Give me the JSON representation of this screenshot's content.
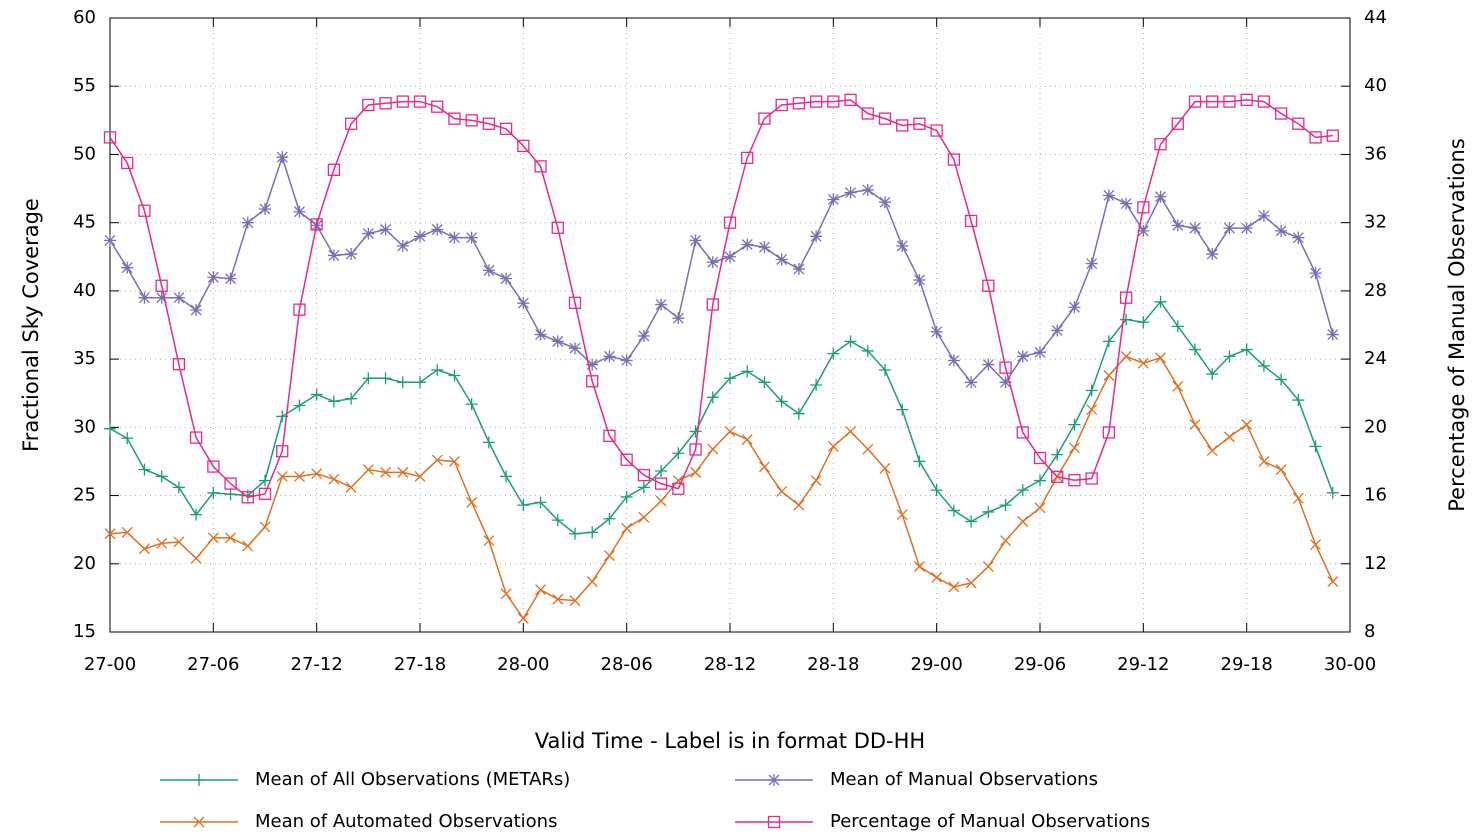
{
  "chart_data": {
    "type": "line",
    "xlabel": "Valid Time - Label is in format DD-HH",
    "ylabel": "Fractional Sky Coverage",
    "y2label": "Percentage of Manual Observations",
    "categories": [
      "27-00",
      null,
      null,
      null,
      null,
      null,
      "27-06",
      null,
      null,
      null,
      null,
      null,
      "27-12",
      null,
      null,
      null,
      null,
      null,
      "27-18",
      null,
      null,
      null,
      null,
      null,
      "28-00",
      null,
      null,
      null,
      null,
      null,
      "28-06",
      null,
      null,
      null,
      null,
      null,
      "28-12",
      null,
      null,
      null,
      null,
      null,
      "28-18",
      null,
      null,
      null,
      null,
      null,
      "29-00",
      null,
      null,
      null,
      null,
      null,
      "29-06",
      null,
      null,
      null,
      null,
      null,
      "29-12",
      null,
      null,
      null,
      null,
      null,
      "29-18",
      null,
      null,
      null,
      null,
      null,
      "30-00"
    ],
    "ylim": [
      15,
      60
    ],
    "yticks": [
      15,
      20,
      25,
      30,
      35,
      40,
      45,
      50,
      55,
      60
    ],
    "y2lim": [
      8,
      44
    ],
    "y2ticks": [
      8,
      12,
      16,
      20,
      24,
      28,
      32,
      36,
      40,
      44
    ],
    "grid": true,
    "legend": "bottom",
    "series": [
      {
        "name": "Mean of All Observations (METARs)",
        "color": "#1b9e77",
        "marker": "plus",
        "values": [
          29.9,
          29.2,
          26.9,
          26.4,
          25.6,
          23.6,
          25.2,
          25.1,
          25.0,
          26.1,
          30.8,
          31.6,
          32.4,
          31.9,
          32.1,
          33.6,
          33.6,
          33.3,
          33.3,
          34.2,
          33.8,
          31.7,
          28.9,
          26.4,
          24.3,
          24.5,
          23.2,
          22.2,
          22.3,
          23.3,
          24.9,
          25.6,
          26.8,
          28.1,
          29.7,
          32.2,
          33.6,
          34.1,
          33.3,
          31.9,
          31.0,
          33.1,
          35.4,
          36.3,
          35.6,
          34.2,
          31.3,
          27.5,
          25.4,
          23.9,
          23.1,
          23.8,
          24.3,
          25.4,
          26.1,
          28.0,
          30.2,
          32.7,
          36.3,
          37.9,
          37.7,
          39.2,
          37.4,
          35.7,
          33.9,
          35.2,
          35.7,
          34.5,
          33.5,
          32.0,
          28.6,
          25.2,
          null
        ]
      },
      {
        "name": "Mean of Manual Observations",
        "color": "#7570b3",
        "marker": "star",
        "values": [
          43.7,
          41.7,
          39.5,
          39.5,
          39.5,
          38.6,
          41.0,
          40.9,
          45.0,
          46.0,
          49.8,
          45.8,
          44.8,
          42.6,
          42.7,
          44.2,
          44.5,
          43.3,
          44.0,
          44.5,
          43.9,
          43.9,
          41.5,
          40.9,
          39.1,
          36.8,
          36.3,
          35.8,
          34.6,
          35.2,
          34.9,
          36.7,
          39.0,
          38.0,
          43.7,
          42.1,
          42.5,
          43.4,
          43.2,
          42.3,
          41.6,
          44.0,
          46.7,
          47.2,
          47.4,
          46.5,
          43.3,
          40.8,
          37.0,
          34.9,
          33.3,
          34.6,
          33.3,
          35.2,
          35.5,
          37.1,
          38.8,
          42.0,
          47.0,
          46.4,
          44.4,
          46.9,
          44.8,
          44.6,
          42.7,
          44.6,
          44.6,
          45.5,
          44.4,
          43.9,
          41.3,
          36.8,
          null
        ]
      },
      {
        "name": "Mean of Automated Observations",
        "color": "#e07020",
        "marker": "cross",
        "values": [
          22.2,
          22.3,
          21.1,
          21.5,
          21.6,
          20.4,
          21.9,
          21.9,
          21.3,
          22.7,
          26.4,
          26.4,
          26.6,
          26.2,
          25.6,
          26.9,
          26.7,
          26.7,
          26.4,
          27.6,
          27.5,
          24.5,
          21.7,
          17.8,
          16.0,
          18.1,
          17.4,
          17.3,
          18.7,
          20.6,
          22.6,
          23.4,
          24.6,
          26.1,
          26.7,
          28.4,
          29.7,
          29.1,
          27.1,
          25.3,
          24.3,
          26.1,
          28.6,
          29.7,
          28.4,
          27.0,
          23.6,
          19.8,
          19.0,
          18.3,
          18.6,
          19.8,
          21.7,
          23.1,
          24.1,
          26.4,
          28.5,
          31.3,
          33.8,
          35.2,
          34.7,
          35.1,
          33.0,
          30.2,
          28.3,
          29.3,
          30.2,
          27.5,
          26.9,
          24.8,
          21.4,
          18.7,
          null
        ]
      },
      {
        "name": "Percentage of Manual Observations",
        "color": "#e7298a",
        "marker": "square",
        "axis": "y2",
        "values": [
          37.0,
          35.5,
          32.7,
          28.3,
          23.7,
          19.4,
          17.7,
          16.7,
          15.9,
          16.1,
          18.6,
          26.9,
          31.9,
          35.1,
          37.8,
          38.9,
          39.0,
          39.1,
          39.1,
          38.8,
          38.1,
          38.0,
          37.8,
          37.5,
          36.5,
          35.3,
          31.7,
          27.3,
          22.7,
          19.5,
          18.1,
          17.2,
          16.7,
          16.4,
          18.7,
          27.2,
          32.0,
          35.8,
          38.1,
          38.9,
          39.0,
          39.1,
          39.1,
          39.2,
          38.4,
          38.1,
          37.7,
          37.8,
          37.4,
          35.7,
          32.1,
          28.3,
          23.5,
          19.7,
          18.2,
          17.1,
          16.9,
          17.0,
          19.7,
          27.6,
          32.9,
          36.6,
          37.8,
          39.1,
          39.1,
          39.1,
          39.2,
          39.1,
          38.4,
          37.8,
          37.0,
          37.1,
          null
        ]
      }
    ]
  }
}
